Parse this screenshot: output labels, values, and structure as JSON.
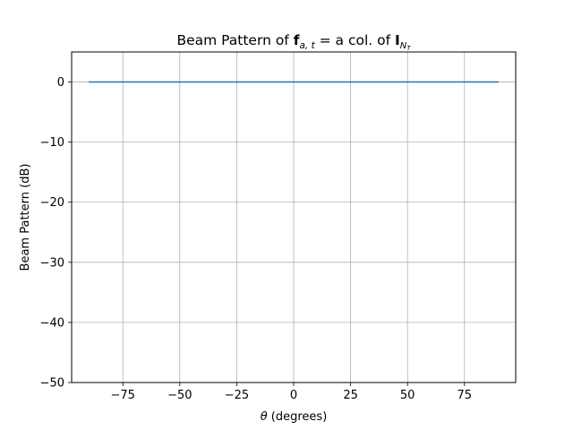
{
  "chart_data": {
    "type": "line",
    "title": {
      "prefix": "Beam Pattern of ",
      "f_symbol": "f",
      "f_subscript": "a, t",
      "equals": " =  a col. of ",
      "i_symbol": "I",
      "i_subscript": "N",
      "i_sub_subscript": "T"
    },
    "xlabel": {
      "symbol": "θ",
      "text": " (degrees)"
    },
    "ylabel": "Beam Pattern (dB)",
    "xlim": [
      -97.5,
      97.5
    ],
    "ylim": [
      -50,
      5
    ],
    "x_ticks": [
      -75,
      -50,
      -25,
      0,
      25,
      50,
      75
    ],
    "x_tick_labels": [
      "−75",
      "−50",
      "−25",
      "0",
      "25",
      "50",
      "75"
    ],
    "y_ticks": [
      0,
      -10,
      -20,
      -30,
      -40,
      -50
    ],
    "y_tick_labels": [
      "0",
      "−10",
      "−20",
      "−30",
      "−40",
      "−50"
    ],
    "grid": true,
    "series": [
      {
        "color": "#1f77b4",
        "x": [
          -90,
          -75,
          -60,
          -45,
          -30,
          -15,
          0,
          15,
          30,
          45,
          60,
          75,
          90
        ],
        "y": [
          0,
          0,
          0,
          0,
          0,
          0,
          0,
          0,
          0,
          0,
          0,
          0,
          0
        ]
      }
    ]
  }
}
